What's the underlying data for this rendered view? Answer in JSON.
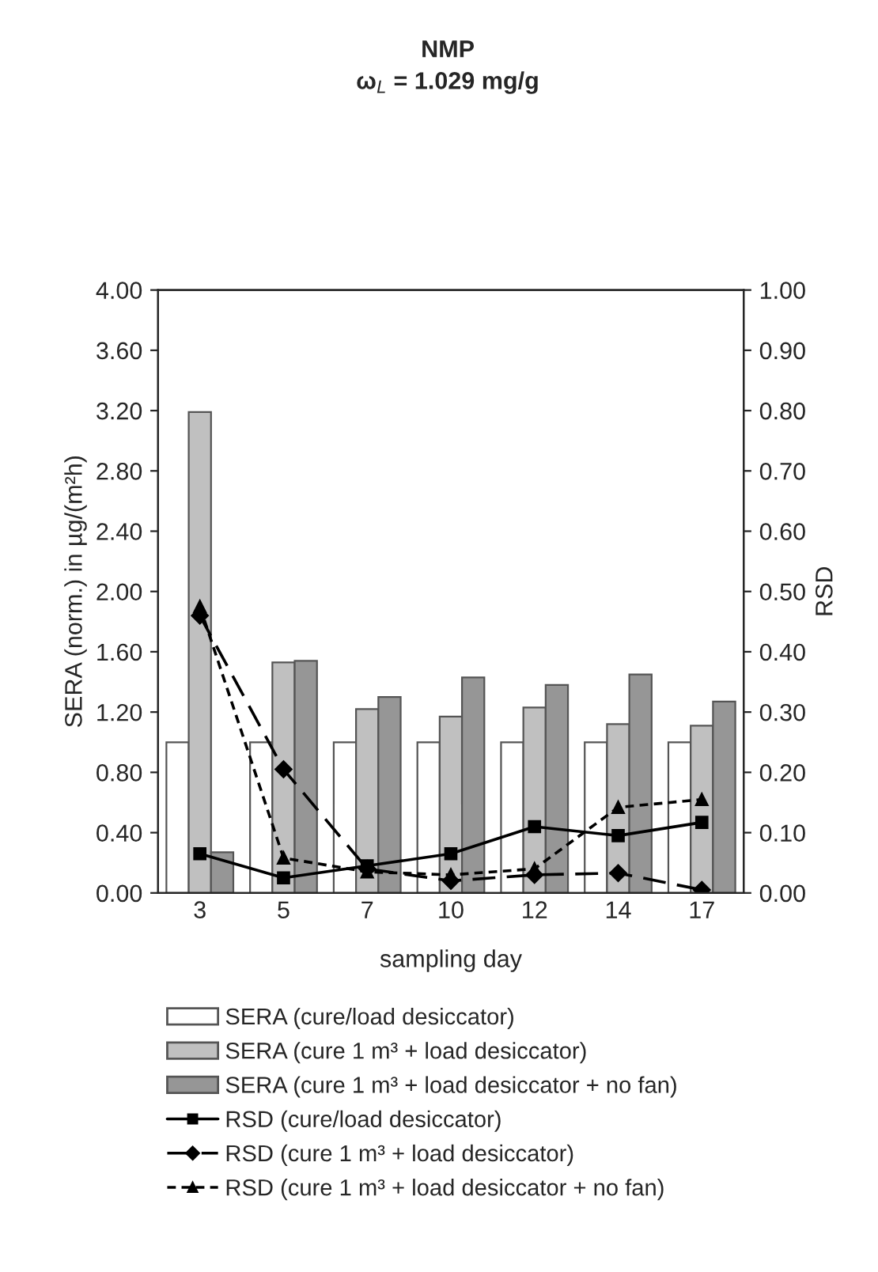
{
  "chart_data": {
    "type": "bar",
    "title": "NMP",
    "subtitle": "ω$_{L}$ = 1.029 mg/g",
    "xlabel": "sampling day",
    "ylabel": "SERA (norm.) in µg/(m²h)",
    "y2label": "RSD",
    "categories": [
      "3",
      "5",
      "7",
      "10",
      "12",
      "14",
      "17"
    ],
    "series": [
      {
        "name": "SERA (cure/load desiccator)",
        "color": "#ffffff",
        "values": [
          1.0,
          1.0,
          1.0,
          1.0,
          1.0,
          1.0,
          1.0
        ]
      },
      {
        "name": "SERA (cure 1 m³ + load desiccator)",
        "color": "#c0c0c0",
        "values": [
          3.19,
          1.53,
          1.22,
          1.17,
          1.23,
          1.12,
          1.11
        ]
      },
      {
        "name": "SERA (cure 1 m³ + load desiccator + no fan)",
        "color": "#969696",
        "values": [
          0.27,
          1.54,
          1.3,
          1.43,
          1.38,
          1.45,
          1.27
        ]
      },
      {
        "name": "RSD (cure/load desiccator)",
        "type": "line",
        "axis": "y2",
        "color": "#000000",
        "marker": "square",
        "line_style": "solid",
        "values": [
          0.065,
          0.025,
          0.045,
          0.065,
          0.11,
          0.095,
          0.117
        ]
      },
      {
        "name": "RSD (cure 1 m³ + load desiccator)",
        "type": "line",
        "axis": "y2",
        "color": "#000000",
        "marker": "diamond",
        "line_style": "dashed",
        "values": [
          0.46,
          0.205,
          0.04,
          0.02,
          0.03,
          0.033,
          0.005
        ]
      },
      {
        "name": "RSD (cure 1 m³ + load desiccator + no fan)",
        "type": "line",
        "axis": "y2",
        "color": "#000000",
        "marker": "triangle",
        "line_style": "dotted",
        "values": [
          0.475,
          0.058,
          0.035,
          0.03,
          0.04,
          0.142,
          0.155
        ]
      }
    ],
    "ylim": [
      0,
      4
    ],
    "yticks": [
      {
        "value": 0,
        "label": "0.00"
      },
      {
        "value": 0.4,
        "label": "0.40"
      },
      {
        "value": 0.8,
        "label": "0.80"
      },
      {
        "value": 1.2,
        "label": "1.20"
      },
      {
        "value": 1.6,
        "label": "1.60"
      },
      {
        "value": 2.0,
        "label": "2.00"
      },
      {
        "value": 2.4,
        "label": "2.40"
      },
      {
        "value": 2.8,
        "label": "2.80"
      },
      {
        "value": 3.2,
        "label": "3.20"
      },
      {
        "value": 3.6,
        "label": "3.60"
      },
      {
        "value": 4.0,
        "label": "4.00"
      }
    ],
    "y2lim": [
      0,
      1
    ],
    "y2ticks": [
      {
        "value": 0,
        "label": "0.00"
      },
      {
        "value": 0.1,
        "label": "0.10"
      },
      {
        "value": 0.2,
        "label": "0.20"
      },
      {
        "value": 0.3,
        "label": "0.30"
      },
      {
        "value": 0.4,
        "label": "0.40"
      },
      {
        "value": 0.5,
        "label": "0.50"
      },
      {
        "value": 0.6,
        "label": "0.60"
      },
      {
        "value": 0.7,
        "label": "0.70"
      },
      {
        "value": 0.8,
        "label": "0.80"
      },
      {
        "value": 0.9,
        "label": "0.90"
      },
      {
        "value": 1.0,
        "label": "1.00"
      }
    ],
    "grid": false,
    "legend": "bottom"
  }
}
